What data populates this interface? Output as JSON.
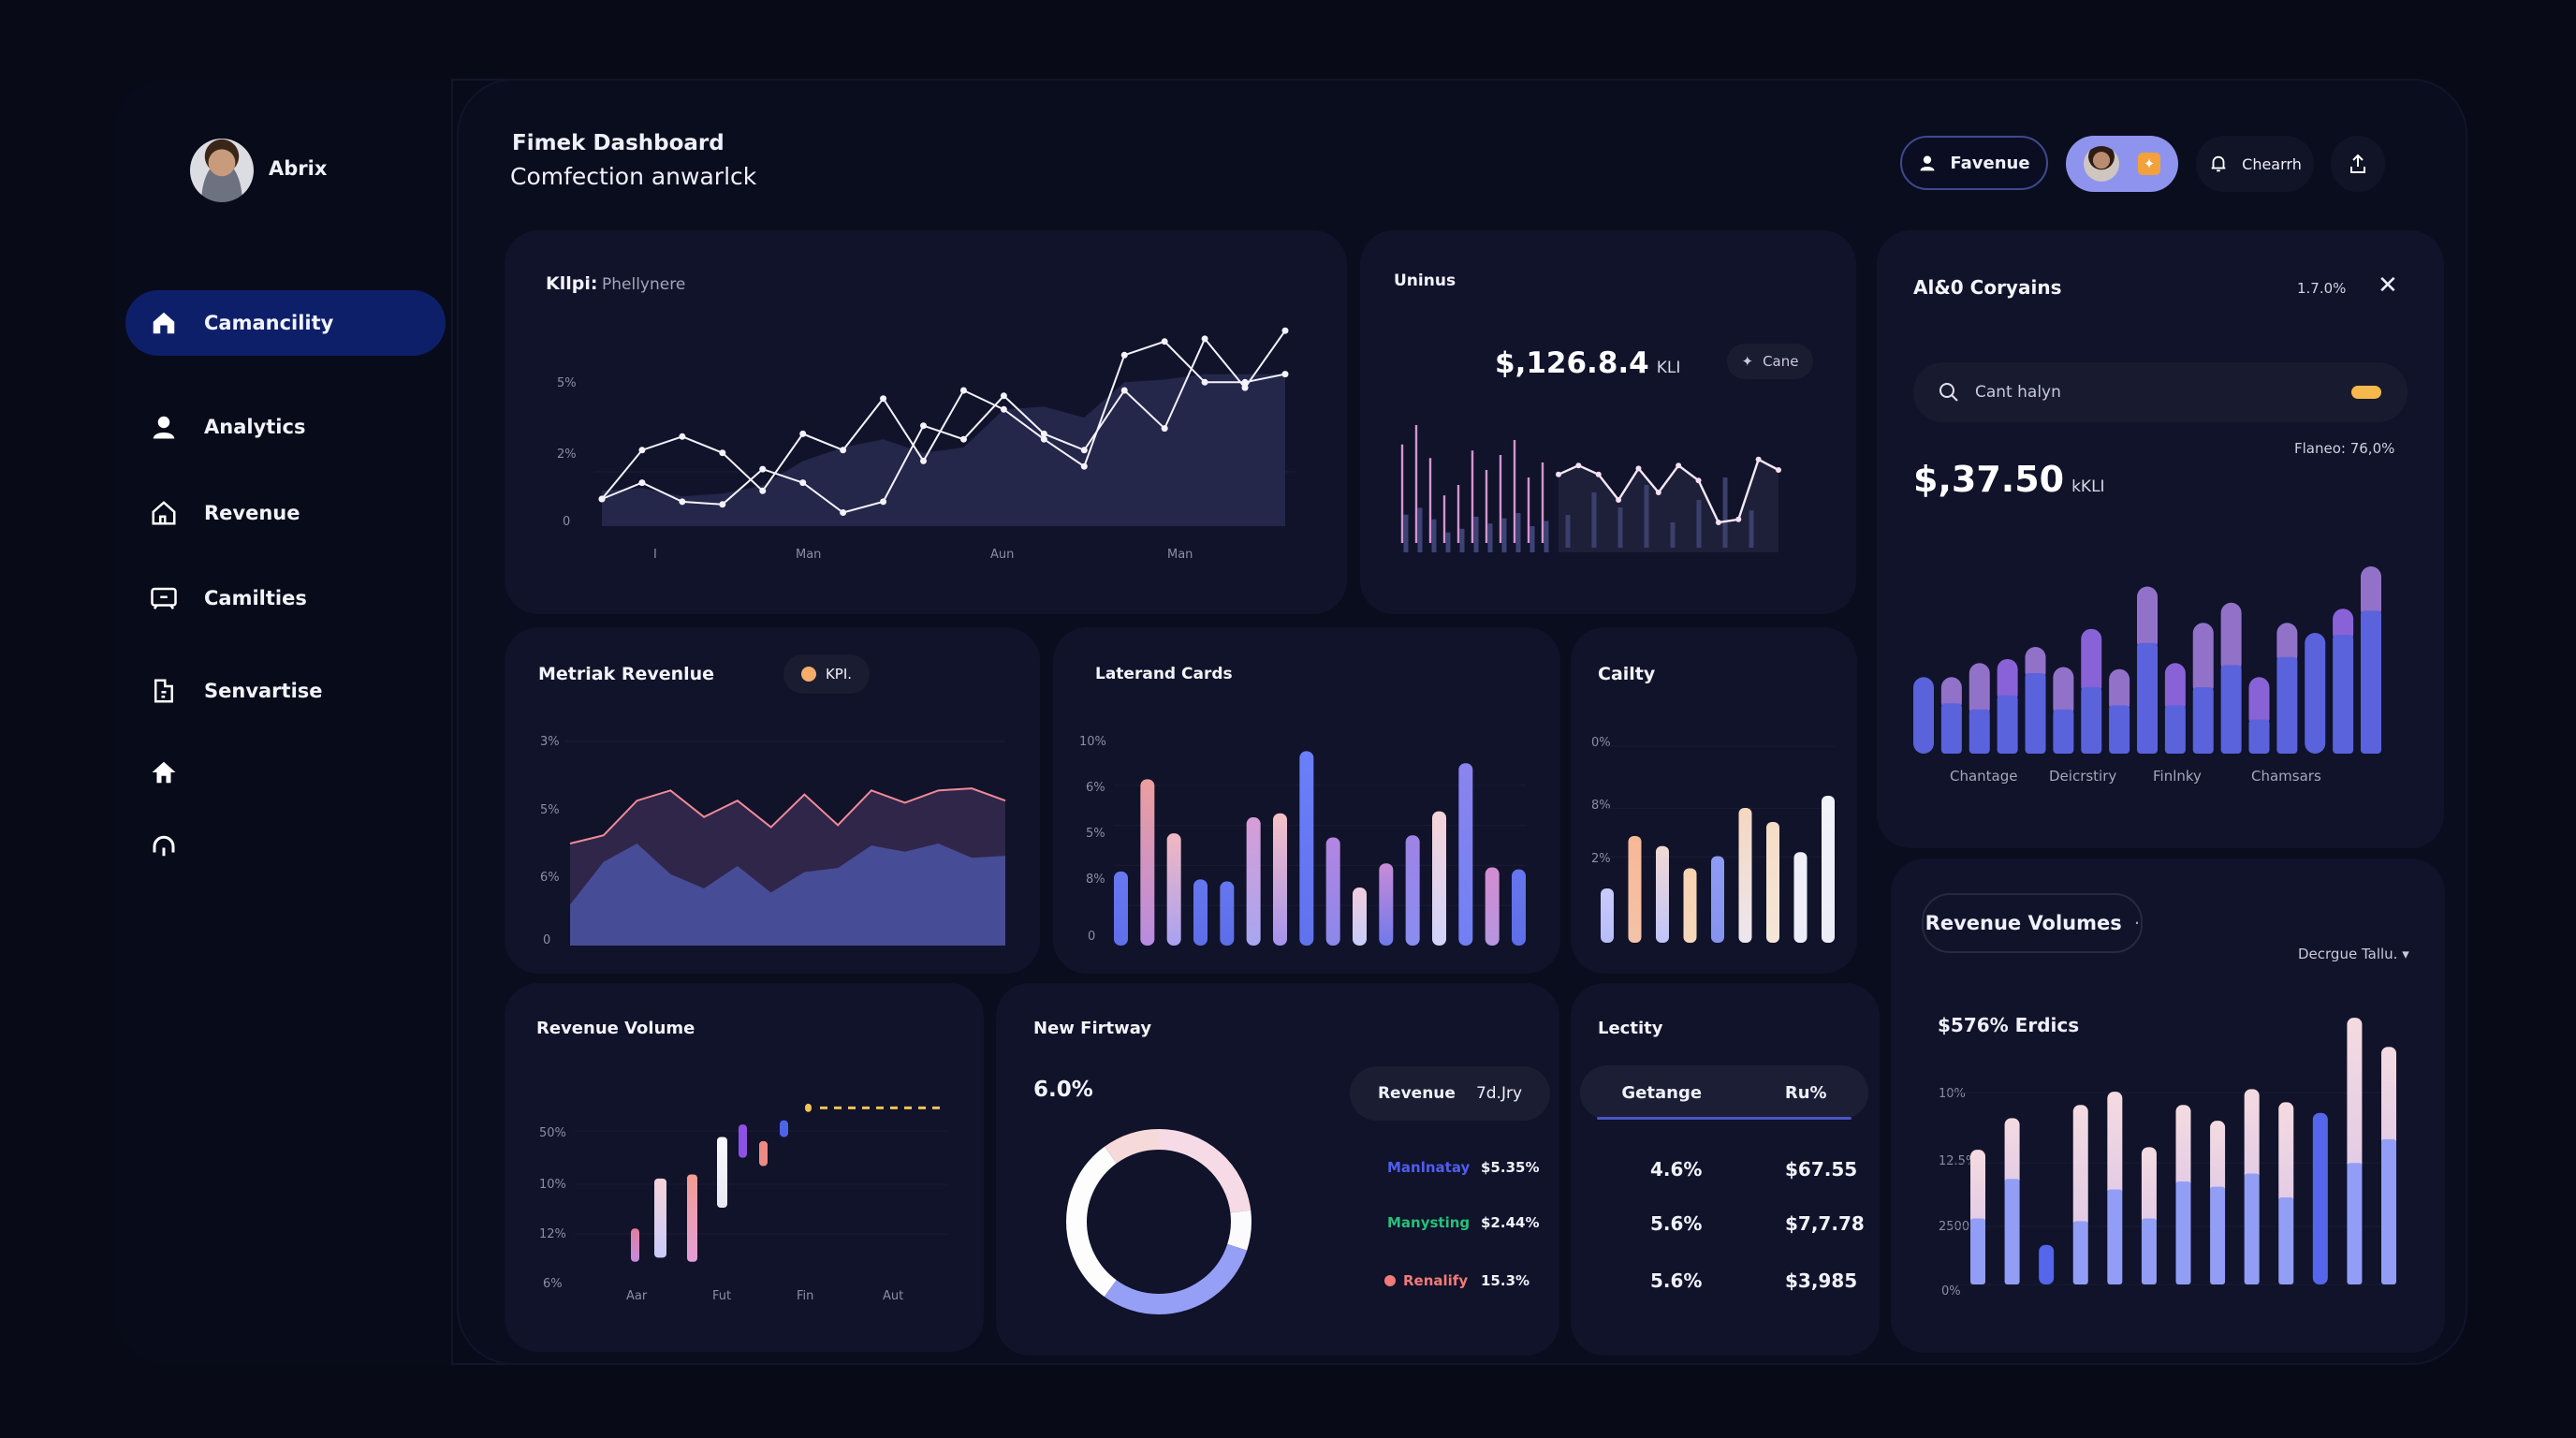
{
  "user": {
    "name": "Abrix"
  },
  "header": {
    "title": "Fimek Dashboard",
    "subtitle": "Comfection anwarlck",
    "buttons": [
      {
        "label": "Favenue",
        "icon": "user-icon"
      },
      {
        "label": "",
        "icon": "profile-avatar"
      },
      {
        "label": "Chearrh",
        "icon": "bell-icon"
      },
      {
        "label": "",
        "icon": "upload-icon"
      }
    ]
  },
  "sidebar": {
    "items": [
      {
        "label": "Camancility",
        "icon": "home-icon",
        "active": true
      },
      {
        "label": "Analytics",
        "icon": "user-icon"
      },
      {
        "label": "Revenue",
        "icon": "house-icon"
      },
      {
        "label": "Camilties",
        "icon": "monitor-icon"
      },
      {
        "label": "Senvartise",
        "icon": "document-icon"
      },
      {
        "label": "",
        "icon": "home-alt-icon"
      },
      {
        "label": "",
        "icon": "headphones-icon"
      }
    ]
  },
  "cards": {
    "kpi_line": {
      "title": "Kllpi:",
      "subtitle": "Phellynere"
    },
    "uninus": {
      "title": "Uninus",
      "value": "$,126.8.4",
      "unit": "KLI",
      "badge": "Cane"
    },
    "right_panel": {
      "title": "Al&0 Coryains",
      "percent": "1.7.0%",
      "search_placeholder": "Cant halyn",
      "value": "$,37.50",
      "unit": "kKLI",
      "caption": "Flaneo: 76,0%"
    },
    "metric_revenue": {
      "title": "Metriak Revenlue",
      "badge": "KPI."
    },
    "laterand": {
      "title": "Laterand Cards"
    },
    "cailty": {
      "title": "Cailty"
    },
    "revenue_volume": {
      "title": "Revenue Volume"
    },
    "new_firtway": {
      "title": "New Firtway",
      "value": "6.0%",
      "pill_label": "Revenue",
      "pill_value": "7d.Jry",
      "legend": [
        {
          "label": "Manlnatay",
          "value": "$5.35%",
          "color": "#4f5df0"
        },
        {
          "label": "Manysting",
          "value": "$2.44%",
          "color": "#27c07a"
        },
        {
          "label": "Renalify",
          "value": "15.3%",
          "color": "#f27a78"
        }
      ]
    },
    "lectity": {
      "title": "Lectity",
      "columns": [
        "Getange",
        "Ru%"
      ],
      "rows": [
        [
          "4.6%",
          "$67.55"
        ],
        [
          "5.6%",
          "$7,7.78"
        ],
        [
          "5.6%",
          "$3,985"
        ]
      ]
    },
    "revenue_volumes": {
      "title": "Revenue Volumes",
      "filter": "Decrgue Tallu.",
      "headline": "$576% Erdics"
    }
  },
  "chart_data": [
    {
      "id": "kpi-line",
      "type": "line",
      "yticks": [
        "0",
        "2%",
        "5%"
      ],
      "xticks": [
        "I",
        "Man",
        "Aun",
        "Man"
      ],
      "ylim": [
        0,
        8
      ],
      "series": [
        {
          "name": "series-a",
          "values": [
            1.0,
            1.6,
            0.9,
            0.8,
            2.1,
            1.6,
            0.5,
            0.9,
            3.7,
            3.2,
            4.8,
            3.4,
            2.8,
            5.0,
            3.6,
            6.9,
            5.1,
            7.2
          ]
        },
        {
          "name": "series-b",
          "values": [
            1.0,
            2.8,
            3.3,
            2.7,
            1.3,
            3.4,
            2.8,
            4.7,
            2.4,
            5.0,
            4.3,
            3.2,
            2.2,
            6.3,
            6.8,
            5.3,
            5.3,
            5.6
          ]
        },
        {
          "name": "area",
          "values": [
            1.3,
            1.4,
            1.1,
            1.2,
            1.5,
            2.4,
            2.9,
            3.2,
            2.7,
            2.9,
            4.3,
            4.4,
            4.0,
            5.3,
            5.4,
            5.6,
            5.6,
            5.6
          ]
        }
      ]
    },
    {
      "id": "uninus-spark",
      "type": "line",
      "spikes": [
        0.72,
        0.85,
        0.63,
        0.38,
        0.45,
        0.68,
        0.55,
        0.65,
        0.75,
        0.5,
        0.6
      ],
      "line": [
        0.52,
        0.58,
        0.52,
        0.35,
        0.56,
        0.4,
        0.58,
        0.48,
        0.2,
        0.22,
        0.62,
        0.55
      ],
      "ylim": [
        0,
        1
      ]
    },
    {
      "id": "right-stacked",
      "type": "bar",
      "categories": [
        "Chantage",
        "Deicrstiry",
        "Finlnky",
        "Chamsars"
      ],
      "series": [
        {
          "name": "base",
          "values": [
            38,
            25,
            22,
            29,
            40,
            22,
            33,
            24,
            55,
            24,
            33,
            44,
            17,
            48,
            60,
            59,
            71
          ]
        },
        {
          "name": "top",
          "values": [
            0,
            13,
            23,
            18,
            13,
            21,
            29,
            18,
            28,
            21,
            32,
            31,
            21,
            17,
            0,
            13,
            22
          ]
        }
      ],
      "ylim": [
        0,
        100
      ]
    },
    {
      "id": "metric-area",
      "type": "area",
      "yticks": [
        "0",
        "6%",
        "5%",
        "3%"
      ],
      "ylim": [
        0,
        10
      ],
      "series": [
        {
          "name": "upper",
          "values": [
            5.0,
            5.4,
            7.1,
            7.6,
            6.3,
            7.1,
            5.8,
            7.4,
            5.9,
            7.6,
            7.0,
            7.6,
            7.7,
            7.1
          ]
        },
        {
          "name": "lower",
          "values": [
            2.0,
            4.1,
            5.0,
            3.5,
            2.8,
            3.9,
            2.6,
            3.6,
            3.8,
            4.9,
            4.6,
            5.0,
            4.3,
            4.4
          ]
        }
      ]
    },
    {
      "id": "laterand-bars",
      "type": "bar",
      "yticks": [
        "0",
        "8%",
        "5%",
        "6%",
        "10%"
      ],
      "ylim": [
        0,
        10
      ],
      "values": [
        3.7,
        8.3,
        5.6,
        3.3,
        3.2,
        6.4,
        6.6,
        9.7,
        5.4,
        2.9,
        4.1,
        5.5,
        6.7,
        9.1,
        3.9,
        3.8
      ]
    },
    {
      "id": "cailty-bars",
      "type": "bar",
      "yticks": [
        "2%",
        "8%",
        "0%"
      ],
      "ylim": [
        0,
        10
      ],
      "values": [
        2.7,
        5.3,
        4.8,
        3.7,
        4.3,
        6.7,
        6.0,
        4.5,
        7.3
      ]
    },
    {
      "id": "revenue-volume-range",
      "type": "bar",
      "yticks": [
        "6%",
        "12%",
        "10%",
        "50%"
      ],
      "xticks": [
        "Aar",
        "Fut",
        "Fin",
        "Aut"
      ],
      "ranges": [
        [
          1.0,
          1.8
        ],
        [
          1.1,
          3.0
        ],
        [
          1.0,
          3.1
        ],
        [
          2.3,
          4.0
        ],
        [
          3.5,
          4.3
        ],
        [
          3.3,
          3.9
        ],
        [
          4.0,
          4.4
        ],
        [
          4.6,
          4.8
        ]
      ],
      "target": 4.7,
      "ylim": [
        0.5,
        5
      ]
    },
    {
      "id": "new-firtway-donut",
      "type": "pie",
      "values": [
        8,
        12,
        30,
        30,
        20
      ],
      "labels": [
        "purple",
        "pink-light",
        "white",
        "lavender",
        "pink"
      ]
    },
    {
      "id": "revenue-volumes-bars",
      "type": "bar",
      "yticks": [
        "0%",
        "2500",
        "12.5%",
        "10%"
      ],
      "ylim": [
        0,
        100
      ],
      "series": [
        {
          "name": "base",
          "values": [
            25,
            40,
            15,
            24,
            36,
            25,
            39,
            37,
            42,
            33,
            65,
            46,
            55
          ]
        },
        {
          "name": "top",
          "values": [
            26,
            23,
            0,
            44,
            37,
            27,
            29,
            25,
            32,
            36,
            0,
            55,
            35
          ]
        }
      ]
    }
  ]
}
